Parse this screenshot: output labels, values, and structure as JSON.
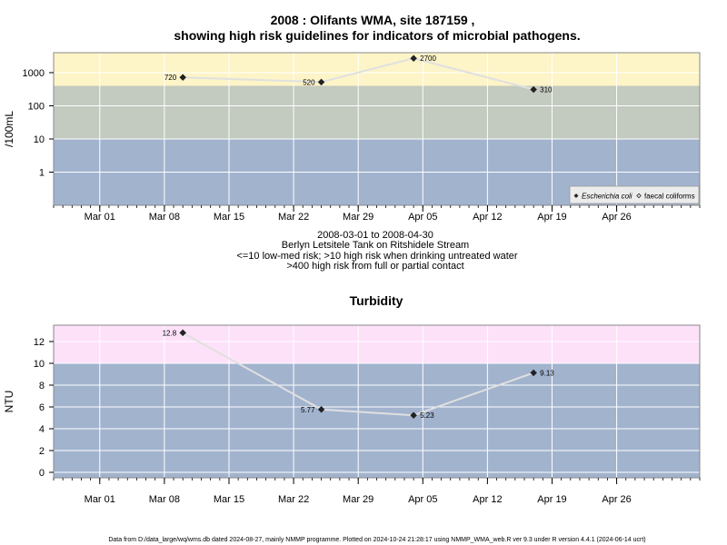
{
  "header": {
    "title_line1": "2008 : Olifants WMA, site 187159 ,",
    "title_line2": "showing high risk guidelines for indicators of microbial pathogens."
  },
  "subtitle": {
    "line1": "2008-03-01 to 2008-04-30",
    "line2": "Berlyn Letsitele Tank on Ritshidele Stream",
    "line3": "<=10 low-med risk; >10 high risk when drinking untreated water",
    "line4": ">400 high risk from full or partial contact"
  },
  "footer": {
    "text": "Data from D:/data_large/wq/wms.db dated 2024-08-27, mainly NMMP programme. Plotted on 2024-10-24 21:28:17 using NMMP_WMA_web.R ver 9.3 under R version 4.4.1 (2024-06-14 ucrt)"
  },
  "colors": {
    "band_blue": "#a2b3ce",
    "band_green": "#c3cabf",
    "band_yellow": "#fdf4c7",
    "band_pink": "#fde1f9",
    "line": "#e0e0e0",
    "marker": "#222222",
    "grid": "#ffffff"
  },
  "chart_data": [
    {
      "type": "line",
      "title": "",
      "ylabel": "/100mL",
      "xlabel": "",
      "y_scale": "log10",
      "ylim": [
        0.1,
        4000
      ],
      "y_ticks": [
        1,
        10,
        100,
        1000
      ],
      "y_tick_labels": [
        "1",
        "10",
        "100",
        "1000"
      ],
      "xlim": [
        "2008-02-25",
        "2008-05-05"
      ],
      "x_ticks": [
        "2008-03-01",
        "2008-03-08",
        "2008-03-15",
        "2008-03-22",
        "2008-03-29",
        "2008-04-05",
        "2008-04-12",
        "2008-04-19",
        "2008-04-26"
      ],
      "x_tick_labels": [
        "Mar 01",
        "Mar 08",
        "Mar 15",
        "Mar 22",
        "Mar 29",
        "Apr 05",
        "Apr 12",
        "Apr 19",
        "Apr 26"
      ],
      "bands": [
        {
          "from": 0.1,
          "to": 10,
          "color": "#a2b3ce"
        },
        {
          "from": 10,
          "to": 400,
          "color": "#c3cabf"
        },
        {
          "from": 400,
          "to": 4000,
          "color": "#fdf4c7"
        }
      ],
      "grid": true,
      "legend": {
        "placement": "bottom-right",
        "entries": [
          {
            "label": "Escherichia coli",
            "marker": "filled-diamond",
            "italic": true
          },
          {
            "label": "faecal coliforms",
            "marker": "open-diamond",
            "italic": false
          }
        ]
      },
      "series": [
        {
          "name": "Escherichia coli",
          "x": [
            "2008-03-10",
            "2008-03-25",
            "2008-04-04",
            "2008-04-17"
          ],
          "values": [
            720,
            520,
            2700,
            310
          ],
          "labels": [
            "720",
            "520",
            "2700",
            "310"
          ],
          "label_sides": [
            "left",
            "left",
            "right",
            "right"
          ]
        }
      ]
    },
    {
      "type": "line",
      "title": "Turbidity",
      "ylabel": "NTU",
      "xlabel": "",
      "ylim": [
        -0.5,
        13.5
      ],
      "y_ticks": [
        0,
        2,
        4,
        6,
        8,
        10,
        12
      ],
      "y_tick_labels": [
        "0",
        "2",
        "4",
        "6",
        "8",
        "10",
        "12"
      ],
      "xlim": [
        "2008-02-25",
        "2008-05-05"
      ],
      "x_ticks": [
        "2008-03-01",
        "2008-03-08",
        "2008-03-15",
        "2008-03-22",
        "2008-03-29",
        "2008-04-05",
        "2008-04-12",
        "2008-04-19",
        "2008-04-26"
      ],
      "x_tick_labels": [
        "Mar 01",
        "Mar 08",
        "Mar 15",
        "Mar 22",
        "Mar 29",
        "Apr 05",
        "Apr 12",
        "Apr 19",
        "Apr 26"
      ],
      "bands": [
        {
          "from": -0.5,
          "to": 10,
          "color": "#a2b3ce"
        },
        {
          "from": 10,
          "to": 13.5,
          "color": "#fde1f9"
        }
      ],
      "grid": true,
      "series": [
        {
          "x": [
            "2008-03-10",
            "2008-03-25",
            "2008-04-04",
            "2008-04-17"
          ],
          "values": [
            12.8,
            5.77,
            5.23,
            9.13
          ],
          "labels": [
            "12.8",
            "5.77",
            "5.23",
            "9.13"
          ],
          "label_sides": [
            "left",
            "left",
            "right",
            "right"
          ]
        }
      ]
    }
  ]
}
